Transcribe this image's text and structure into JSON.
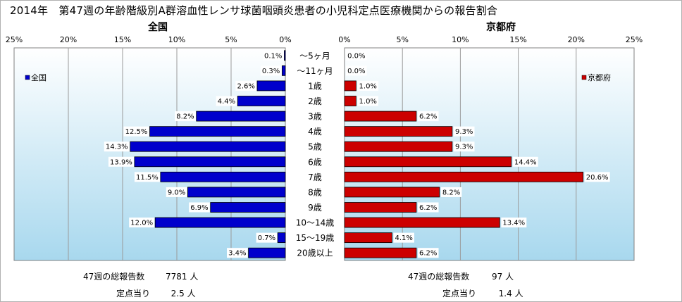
{
  "title": "2014年　第47週の年齢階級別A群溶血性レンサ球菌咽頭炎患者の小児科定点医療機関からの報告割合",
  "colors": {
    "left_bar": "#0000cc",
    "right_bar": "#cc0000",
    "plot_top": "#ffffff",
    "plot_bottom": "#a8d8ee",
    "grid": "#9a9a9a"
  },
  "chart_data": [
    {
      "type": "bar",
      "orientation": "horizontal",
      "direction": "right-to-left",
      "title": "全国",
      "legend": "全国",
      "legend_position": "top-left",
      "x_ticks": [
        "25%",
        "20%",
        "15%",
        "10%",
        "5%",
        "0%"
      ],
      "xlim": [
        0,
        25
      ],
      "grid": true,
      "categories": [
        "～5ヶ月",
        "～11ヶ月",
        "1歳",
        "2歳",
        "3歳",
        "4歳",
        "5歳",
        "6歳",
        "7歳",
        "8歳",
        "9歳",
        "10～14歳",
        "15～19歳",
        "20歳以上"
      ],
      "values": [
        0.1,
        0.3,
        2.6,
        4.4,
        8.2,
        12.5,
        14.3,
        13.9,
        11.5,
        9.0,
        6.9,
        12.0,
        0.7,
        3.4
      ],
      "value_labels": [
        "0.1%",
        "0.3%",
        "2.6%",
        "4.4%",
        "8.2%",
        "12.5%",
        "14.3%",
        "13.9%",
        "11.5%",
        "9.0%",
        "6.9%",
        "12.0%",
        "0.7%",
        "3.4%"
      ]
    },
    {
      "type": "bar",
      "orientation": "horizontal",
      "direction": "left-to-right",
      "title": "京都府",
      "legend": "京都府",
      "legend_position": "top-right",
      "x_ticks": [
        "0%",
        "5%",
        "10%",
        "15%",
        "20%",
        "25%"
      ],
      "xlim": [
        0,
        25
      ],
      "grid": true,
      "categories": [
        "～5ヶ月",
        "～11ヶ月",
        "1歳",
        "2歳",
        "3歳",
        "4歳",
        "5歳",
        "6歳",
        "7歳",
        "8歳",
        "9歳",
        "10～14歳",
        "15～19歳",
        "20歳以上"
      ],
      "values": [
        0.0,
        0.0,
        1.0,
        1.0,
        6.2,
        9.3,
        9.3,
        14.4,
        20.6,
        8.2,
        6.2,
        13.4,
        4.1,
        6.2
      ],
      "value_labels": [
        "0.0%",
        "0.0%",
        "1.0%",
        "1.0%",
        "6.2%",
        "9.3%",
        "9.3%",
        "14.4%",
        "20.6%",
        "8.2%",
        "6.2%",
        "13.4%",
        "4.1%",
        "6.2%"
      ]
    }
  ],
  "footer": {
    "left": {
      "total_label": "47週の総報告数",
      "total_value": "7781",
      "total_unit": "人",
      "per_label": "定点当り",
      "per_value": "2.5",
      "per_unit": "人"
    },
    "right": {
      "total_label": "47週の総報告数",
      "total_value": "97",
      "total_unit": "人",
      "per_label": "定点当り",
      "per_value": "1.4",
      "per_unit": "人"
    }
  }
}
